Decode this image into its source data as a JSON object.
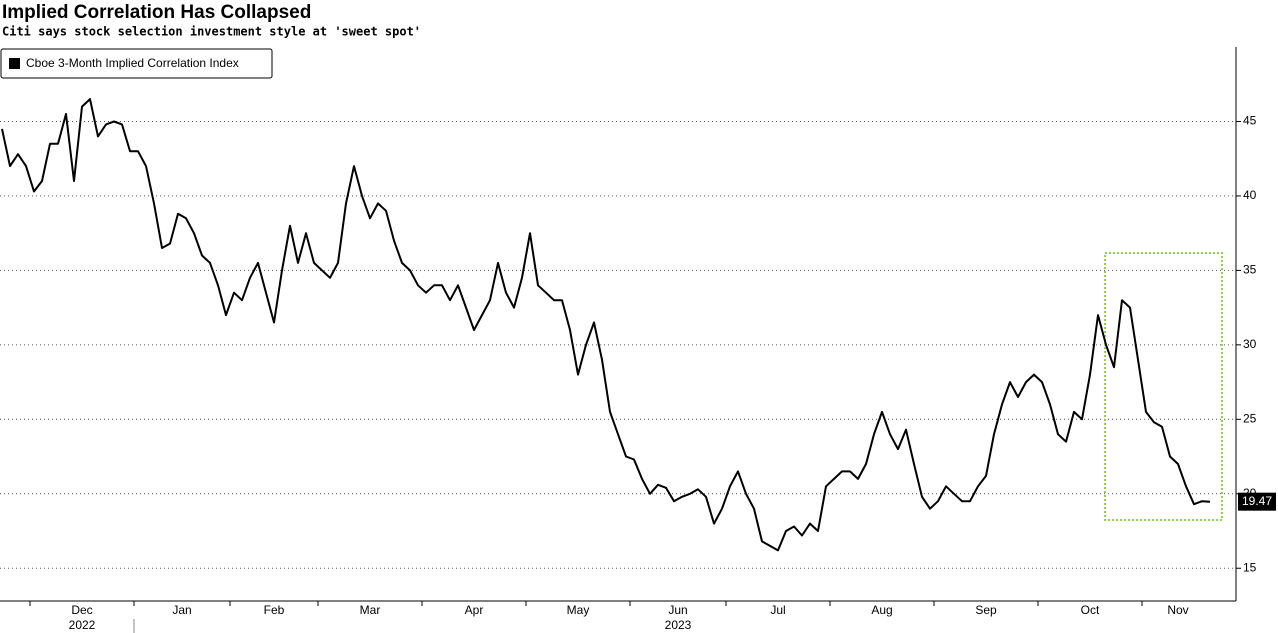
{
  "chart_data": {
    "type": "line",
    "title": "Implied Correlation Has Collapsed",
    "subtitle": "Citi says stock selection investment style at 'sweet spot'",
    "x": [
      "2022-11",
      "2022-11",
      "2022-11",
      "2022-11",
      "2022-12",
      "2022-12",
      "2022-12",
      "2022-12",
      "2022-12",
      "2022-12",
      "2022-12",
      "2022-12",
      "2022-12",
      "2022-12",
      "2022-12",
      "2022-12",
      "2022-12",
      "2023-01",
      "2023-01",
      "2023-01",
      "2023-01",
      "2023-01",
      "2023-01",
      "2023-01",
      "2023-01",
      "2023-01",
      "2023-01",
      "2023-01",
      "2023-01",
      "2023-02",
      "2023-02",
      "2023-02",
      "2023-02",
      "2023-02",
      "2023-02",
      "2023-02",
      "2023-02",
      "2023-02",
      "2023-02",
      "2023-02",
      "2023-03",
      "2023-03",
      "2023-03",
      "2023-03",
      "2023-03",
      "2023-03",
      "2023-03",
      "2023-03",
      "2023-03",
      "2023-03",
      "2023-03",
      "2023-03",
      "2023-03",
      "2023-04",
      "2023-04",
      "2023-04",
      "2023-04",
      "2023-04",
      "2023-04",
      "2023-04",
      "2023-04",
      "2023-04",
      "2023-04",
      "2023-04",
      "2023-04",
      "2023-04",
      "2023-05",
      "2023-05",
      "2023-05",
      "2023-05",
      "2023-05",
      "2023-05",
      "2023-05",
      "2023-05",
      "2023-05",
      "2023-05",
      "2023-05",
      "2023-05",
      "2023-05",
      "2023-06",
      "2023-06",
      "2023-06",
      "2023-06",
      "2023-06",
      "2023-06",
      "2023-06",
      "2023-06",
      "2023-06",
      "2023-06",
      "2023-06",
      "2023-06",
      "2023-07",
      "2023-07",
      "2023-07",
      "2023-07",
      "2023-07",
      "2023-07",
      "2023-07",
      "2023-07",
      "2023-07",
      "2023-07",
      "2023-07",
      "2023-07",
      "2023-07",
      "2023-08",
      "2023-08",
      "2023-08",
      "2023-08",
      "2023-08",
      "2023-08",
      "2023-08",
      "2023-08",
      "2023-08",
      "2023-08",
      "2023-08",
      "2023-08",
      "2023-08",
      "2023-09",
      "2023-09",
      "2023-09",
      "2023-09",
      "2023-09",
      "2023-09",
      "2023-09",
      "2023-09",
      "2023-09",
      "2023-09",
      "2023-09",
      "2023-09",
      "2023-09",
      "2023-10",
      "2023-10",
      "2023-10",
      "2023-10",
      "2023-10",
      "2023-10",
      "2023-10",
      "2023-10",
      "2023-10",
      "2023-10",
      "2023-10",
      "2023-10",
      "2023-10",
      "2023-11",
      "2023-11",
      "2023-11",
      "2023-11",
      "2023-11",
      "2023-11",
      "2023-11",
      "2023-11",
      "2023-11"
    ],
    "series": [
      {
        "name": "Cboe 3-Month Implied Correlation Index",
        "color": "#000000",
        "values": [
          44.5,
          42.0,
          42.8,
          42.0,
          40.3,
          41.0,
          43.5,
          43.5,
          45.5,
          41.0,
          46.0,
          46.5,
          44.0,
          44.8,
          45.0,
          44.8,
          43.0,
          43.0,
          42.0,
          39.5,
          36.5,
          36.8,
          38.8,
          38.5,
          37.5,
          36.0,
          35.5,
          34.0,
          32.0,
          33.5,
          33.0,
          34.5,
          35.5,
          33.5,
          31.5,
          35.0,
          38.0,
          35.5,
          37.5,
          35.5,
          35.0,
          34.5,
          35.5,
          39.5,
          42.0,
          40.0,
          38.5,
          39.5,
          39.0,
          37.0,
          35.5,
          35.0,
          34.0,
          33.5,
          34.0,
          34.0,
          33.0,
          34.0,
          32.5,
          31.0,
          32.0,
          33.0,
          35.5,
          33.5,
          32.5,
          34.5,
          37.5,
          34.0,
          33.5,
          33.0,
          33.0,
          31.0,
          28.0,
          30.0,
          31.5,
          29.0,
          25.5,
          24.0,
          22.5,
          22.3,
          21.0,
          20.0,
          20.6,
          20.4,
          19.5,
          19.8,
          20.0,
          20.3,
          19.8,
          18.0,
          19.0,
          20.5,
          21.5,
          20.0,
          19.0,
          16.8,
          16.5,
          16.2,
          17.5,
          17.8,
          17.2,
          18.0,
          17.5,
          20.5,
          21.0,
          21.5,
          21.5,
          21.0,
          22.0,
          24.0,
          25.5,
          24.0,
          23.0,
          24.3,
          22.0,
          19.8,
          19.0,
          19.5,
          20.5,
          20.0,
          19.5,
          19.5,
          20.5,
          21.2,
          24.0,
          26.0,
          27.5,
          26.5,
          27.5,
          28.0,
          27.5,
          26.0,
          24.0,
          23.5,
          25.5,
          25.0,
          28.0,
          32.0,
          30.0,
          28.5,
          33.0,
          32.5,
          29.0,
          25.5,
          24.8,
          24.5,
          22.5,
          22.0,
          20.5,
          19.3,
          19.5,
          19.47
        ]
      }
    ],
    "xticks": [
      {
        "value": "2022-12",
        "label": "Dec"
      },
      {
        "value": "2023-01",
        "label": "Jan"
      },
      {
        "value": "2023-02",
        "label": "Feb"
      },
      {
        "value": "2023-03",
        "label": "Mar"
      },
      {
        "value": "2023-04",
        "label": "Apr"
      },
      {
        "value": "2023-05",
        "label": "May"
      },
      {
        "value": "2023-06",
        "label": "Jun"
      },
      {
        "value": "2023-07",
        "label": "Jul"
      },
      {
        "value": "2023-08",
        "label": "Aug"
      },
      {
        "value": "2023-09",
        "label": "Sep"
      },
      {
        "value": "2023-10",
        "label": "Oct"
      },
      {
        "value": "2023-11",
        "label": "Nov"
      }
    ],
    "x_years": [
      {
        "value": "2022-12",
        "label": "2022"
      },
      {
        "value": "2023-06",
        "label": "2023"
      }
    ],
    "ylim": [
      12.8,
      50
    ],
    "yticks": [
      15,
      20,
      25,
      30,
      35,
      40,
      45
    ],
    "grid": true,
    "legend": "upper left"
  }
}
